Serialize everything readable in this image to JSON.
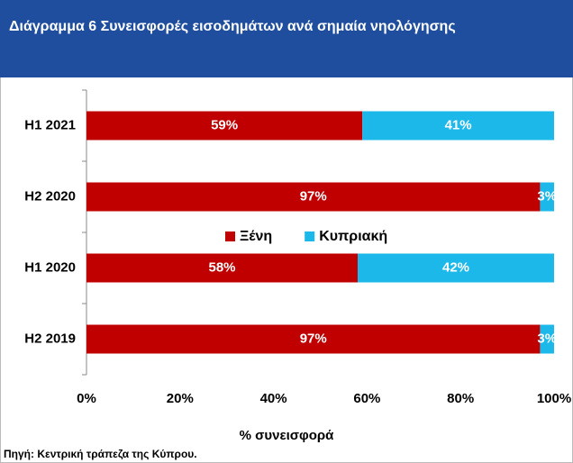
{
  "chart_data": {
    "type": "stacked-barh",
    "title": "Διάγραμμα 6 Συνεισφορές εισοδημάτων ανά σημαία νηολόγησης",
    "categories": [
      "H1 2021",
      "H2 2020",
      "H1 2020",
      "H2 2019"
    ],
    "series": [
      {
        "name": "Ξένη",
        "color": "#c00000",
        "values": [
          59,
          97,
          58,
          97
        ],
        "value_labels": [
          "59%",
          "97%",
          "58%",
          "97%"
        ]
      },
      {
        "name": "Κυπριακή",
        "color": "#1cb8ea",
        "values": [
          41,
          3,
          42,
          3
        ],
        "value_labels": [
          "41%",
          "3%",
          "42%",
          "3%"
        ]
      }
    ],
    "xlim": [
      0,
      100
    ],
    "xticks": [
      {
        "value": 0,
        "label": "0%"
      },
      {
        "value": 20,
        "label": "20%"
      },
      {
        "value": 40,
        "label": "40%"
      },
      {
        "value": 60,
        "label": "60%"
      },
      {
        "value": 80,
        "label": "80%"
      },
      {
        "value": 100,
        "label": "100%"
      }
    ],
    "xlabel": "% συνεισφορά",
    "source": "Πηγή: Κεντρική τράπεζα της Κύπρου."
  }
}
